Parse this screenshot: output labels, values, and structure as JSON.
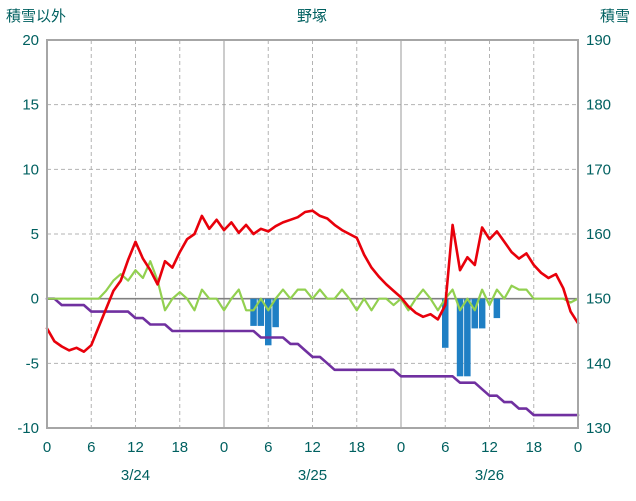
{
  "chart_data": {
    "type": "line",
    "title": "野塚",
    "text_color": "#006060",
    "left_axis": {
      "label": "積雪以外",
      "min": -10,
      "max": 20,
      "ticks": [
        20,
        15,
        10,
        5,
        0,
        -5,
        -10
      ]
    },
    "right_axis": {
      "label": "積雪",
      "min": 130,
      "max": 190,
      "ticks": [
        190,
        180,
        170,
        160,
        150,
        140,
        130
      ]
    },
    "x_axis": {
      "total_hours": 72,
      "tick_step": 6,
      "tick_labels": [
        "0",
        "6",
        "12",
        "18",
        "0",
        "6",
        "12",
        "18",
        "0",
        "6",
        "12",
        "18",
        "0"
      ],
      "date_labels": [
        "3/24",
        "3/25",
        "3/26"
      ]
    },
    "grid": {
      "color": "#b3b3b3",
      "day_line_color": "#999999",
      "zero_line_color": "#808080",
      "border_color": "#a6a6a6"
    },
    "series": {
      "red_line": {
        "axis": "left",
        "color": "#e8000b",
        "values": [
          -2.3,
          -3.3,
          -3.7,
          -4.0,
          -3.8,
          -4.1,
          -3.6,
          -2.2,
          -0.8,
          0.6,
          1.4,
          3.0,
          4.4,
          3.1,
          2.2,
          1.1,
          2.9,
          2.4,
          3.6,
          4.6,
          5.0,
          6.4,
          5.4,
          6.1,
          5.3,
          5.9,
          5.1,
          5.7,
          5.0,
          5.4,
          5.2,
          5.6,
          5.9,
          6.1,
          6.3,
          6.7,
          6.8,
          6.4,
          6.2,
          5.7,
          5.3,
          5.0,
          4.7,
          3.4,
          2.4,
          1.7,
          1.1,
          0.6,
          0.1,
          -0.6,
          -1.1,
          -1.4,
          -1.2,
          -1.6,
          -0.5,
          5.7,
          2.2,
          3.2,
          2.6,
          5.5,
          4.6,
          5.2,
          4.4,
          3.6,
          3.1,
          3.5,
          2.6,
          2.0,
          1.6,
          1.9,
          0.8,
          -1.0,
          -1.9
        ]
      },
      "green_line": {
        "axis": "left",
        "color": "#92d050",
        "values": [
          0,
          0,
          0,
          0,
          0,
          0,
          0,
          0,
          0.6,
          1.4,
          1.9,
          1.4,
          2.2,
          1.6,
          2.9,
          1.4,
          -0.9,
          0,
          0.5,
          0,
          -0.9,
          0.7,
          0,
          0,
          -0.9,
          0,
          0.7,
          -0.9,
          -0.9,
          0,
          -0.9,
          0,
          0.7,
          0,
          0.7,
          0.7,
          0,
          0.7,
          0,
          0,
          0.7,
          0,
          -0.9,
          0,
          -0.9,
          0,
          0,
          -0.5,
          0,
          -0.9,
          0,
          0.7,
          0,
          -0.9,
          0,
          0.7,
          -0.9,
          0,
          -0.9,
          0.7,
          -0.5,
          0.7,
          0,
          1.0,
          0.7,
          0.7,
          0,
          0,
          0,
          0,
          0,
          -0.3,
          0
        ]
      },
      "purple_line": {
        "axis": "right",
        "color": "#7030a0",
        "values": [
          150,
          150,
          149,
          149,
          149,
          149,
          148,
          148,
          148,
          148,
          148,
          148,
          147,
          147,
          146,
          146,
          146,
          145,
          145,
          145,
          145,
          145,
          145,
          145,
          145,
          145,
          145,
          145,
          145,
          144,
          144,
          144,
          144,
          143,
          143,
          142,
          141,
          141,
          140,
          139,
          139,
          139,
          139,
          139,
          139,
          139,
          139,
          139,
          138,
          138,
          138,
          138,
          138,
          138,
          138,
          138,
          137,
          137,
          137,
          136,
          135,
          135,
          134,
          134,
          133,
          133,
          132,
          132,
          132,
          132,
          132,
          132,
          132
        ]
      },
      "blue_bars": {
        "axis": "left",
        "color": "#1f7fc4",
        "points": [
          {
            "h": 28,
            "v": -2.1
          },
          {
            "h": 29,
            "v": -2.1
          },
          {
            "h": 30,
            "v": -3.6
          },
          {
            "h": 31,
            "v": -2.2
          },
          {
            "h": 54,
            "v": -3.8
          },
          {
            "h": 56,
            "v": -6
          },
          {
            "h": 57,
            "v": -6
          },
          {
            "h": 58,
            "v": -2.3
          },
          {
            "h": 59,
            "v": -2.3
          },
          {
            "h": 61,
            "v": -1.5
          }
        ]
      }
    }
  }
}
